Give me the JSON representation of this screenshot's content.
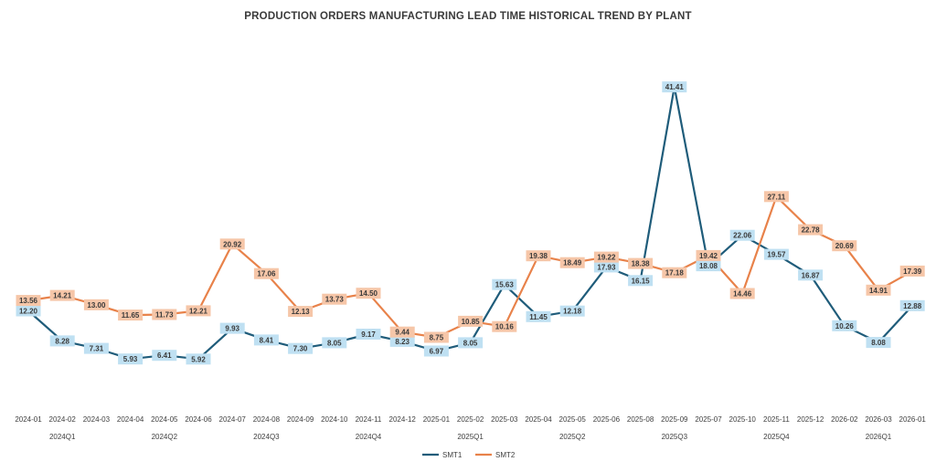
{
  "chart_data": {
    "type": "line",
    "title": "PRODUCTION ORDERS MANUFACTURING LEAD TIME HISTORICAL TREND BY PLANT",
    "categories": [
      "2024-01",
      "2024-02",
      "2024-03",
      "2024-04",
      "2024-05",
      "2024-06",
      "2024-07",
      "2024-08",
      "2024-09",
      "2024-10",
      "2024-11",
      "2024-12",
      "2025-01",
      "2025-02",
      "2025-03",
      "2025-04",
      "2025-05",
      "2025-06",
      "2025-08",
      "2025-09",
      "2025-07",
      "2025-10",
      "2025-11",
      "2025-12",
      "2026-02",
      "2026-03",
      "2026-01"
    ],
    "quarters": [
      {
        "label": "2024Q1",
        "start": 0,
        "end": 2
      },
      {
        "label": "2024Q2",
        "start": 3,
        "end": 5
      },
      {
        "label": "2024Q3",
        "start": 6,
        "end": 8
      },
      {
        "label": "2024Q4",
        "start": 9,
        "end": 11
      },
      {
        "label": "2025Q1",
        "start": 12,
        "end": 14
      },
      {
        "label": "2025Q2",
        "start": 15,
        "end": 17
      },
      {
        "label": "2025Q3",
        "start": 18,
        "end": 20
      },
      {
        "label": "2025Q4",
        "start": 21,
        "end": 23
      },
      {
        "label": "2026Q1",
        "start": 24,
        "end": 26
      }
    ],
    "ylim": [
      0,
      45
    ],
    "grid": false,
    "legend_position": "bottom",
    "series": [
      {
        "name": "SMT1",
        "color": "#1f5c7a",
        "label_bg": "#bfe0f2",
        "values": [
          12.2,
          8.28,
          7.31,
          5.93,
          6.41,
          5.92,
          9.93,
          8.41,
          7.3,
          8.05,
          9.17,
          8.23,
          6.97,
          8.05,
          15.63,
          11.45,
          12.18,
          17.93,
          16.15,
          41.41,
          18.08,
          22.06,
          19.57,
          16.87,
          10.26,
          8.08,
          12.88
        ],
        "labels": [
          "12.20",
          "8.28",
          "7.31",
          "5.93",
          "6.41",
          "5.92",
          "9.93",
          "8.41",
          "7.30",
          "8.05",
          "9.17",
          "8.23",
          "6.97",
          "8.05",
          "15.63",
          "11.45",
          "12.18",
          "17.93",
          "16.15",
          "41.41",
          "18.08",
          "22.06",
          "19.57",
          "16.87",
          "10.26",
          "8.08",
          "12.88"
        ]
      },
      {
        "name": "SMT2",
        "color": "#e8824a",
        "label_bg": "#f6c6a8",
        "values": [
          13.56,
          14.21,
          13.0,
          11.65,
          11.73,
          12.21,
          20.92,
          17.06,
          12.13,
          13.73,
          14.5,
          9.44,
          8.75,
          10.85,
          10.16,
          19.38,
          18.49,
          19.22,
          18.38,
          17.18,
          19.42,
          14.46,
          27.11,
          22.78,
          20.69,
          14.91,
          17.39
        ],
        "labels": [
          "13.56",
          "14.21",
          "13.00",
          "11.65",
          "11.73",
          "12.21",
          "20.92",
          "17.06",
          "12.13",
          "13.73",
          "14.50",
          "9.44",
          "8.75",
          "10.85",
          "10.16",
          "19.38",
          "18.49",
          "19.22",
          "18.38",
          "17.18",
          "19.42",
          "14.46",
          "27.11",
          "22.78",
          "20.69",
          "14.91",
          "17.39"
        ]
      }
    ]
  }
}
